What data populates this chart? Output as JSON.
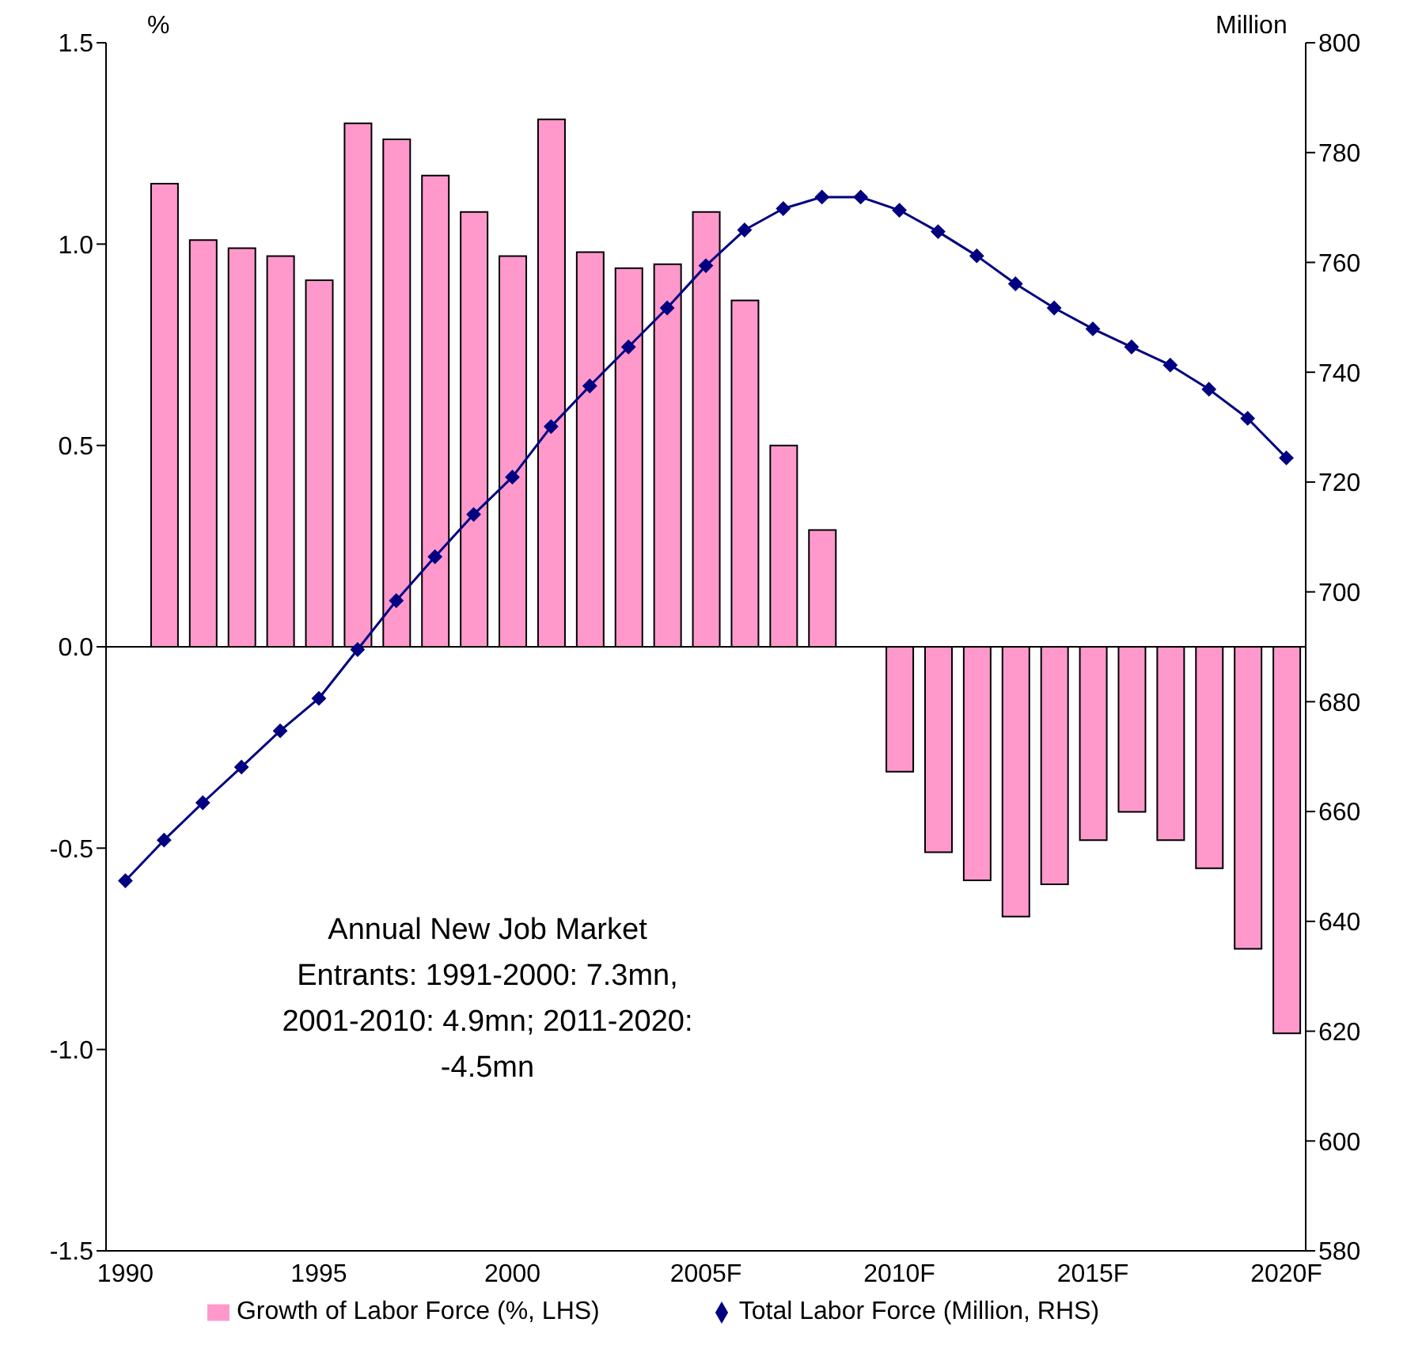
{
  "chart_data": {
    "type": "bar",
    "categories": [
      "1990",
      null,
      null,
      null,
      null,
      "1995",
      null,
      null,
      null,
      null,
      "2000",
      null,
      null,
      null,
      null,
      "2005F",
      null,
      null,
      null,
      null,
      "2010F",
      null,
      null,
      null,
      null,
      "2015F",
      null,
      null,
      null,
      null,
      "2020F"
    ],
    "series": [
      {
        "name": "Growth of Labor Force (%, LHS)",
        "color": "#ff99cc",
        "values": [
          null,
          1.15,
          1.01,
          0.99,
          0.97,
          0.91,
          1.3,
          1.26,
          1.17,
          1.08,
          0.97,
          1.31,
          0.98,
          0.94,
          0.95,
          1.08,
          0.86,
          0.5,
          0.29,
          0,
          -0.31,
          -0.51,
          -0.58,
          -0.67,
          -0.59,
          -0.48,
          -0.41,
          -0.48,
          -0.55,
          -0.75,
          -0.96
        ]
      },
      {
        "name": "Total Labor Force (Million, RHS)",
        "type": "line",
        "axis": "y2",
        "color": "#000080",
        "marker": "diamond",
        "values": [
          647.4,
          654.8,
          661.6,
          668.1,
          674.7,
          680.6,
          689.5,
          698.4,
          706.4,
          714.1,
          720.9,
          730.1,
          737.5,
          744.6,
          751.7,
          759.4,
          765.9,
          769.8,
          771.9,
          771.9,
          769.5,
          765.6,
          761.2,
          756.1,
          751.7,
          747.9,
          744.6,
          741.3,
          736.9,
          731.6,
          724.4
        ]
      }
    ],
    "ylabel": "%",
    "y2label": "Million",
    "ylim": [
      -1.5,
      1.5
    ],
    "yticks": [
      {
        "value": -1.5,
        "label": "-1.5"
      },
      {
        "value": -1,
        "label": "-1.0"
      },
      {
        "value": -0.5,
        "label": "-0.5"
      },
      {
        "value": 0,
        "label": "0.0"
      },
      {
        "value": 0.5,
        "label": "0.5"
      },
      {
        "value": 1,
        "label": "1.0"
      },
      {
        "value": 1.5,
        "label": "1.5"
      }
    ],
    "y2lim": [
      580,
      800
    ],
    "y2ticks": [
      580,
      600,
      620,
      640,
      660,
      680,
      700,
      720,
      740,
      760,
      780,
      800
    ],
    "annotations": [
      "Annual New Job Market Entrants: 1991-2000: 7.3mn, 2001-2010: 4.9mn; 2011-2020: -4.5mn"
    ],
    "legend": "bottom"
  }
}
